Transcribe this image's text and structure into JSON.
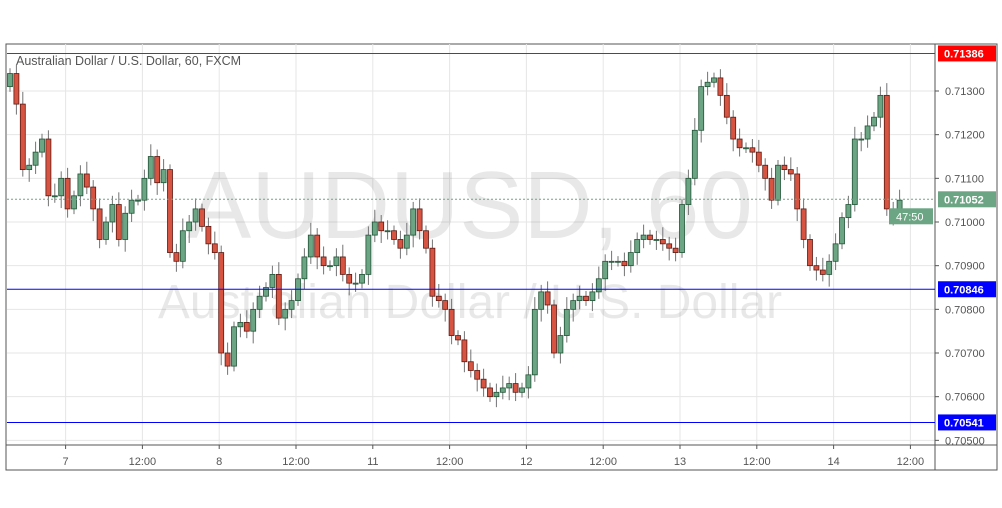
{
  "chart_data": {
    "type": "candlestick",
    "title": "Australian Dollar / U.S. Dollar, 60, FXCM",
    "watermark": {
      "symbol": "AUDUSD, 60",
      "name": "Australian Dollar / U.S. Dollar"
    },
    "ylim": [
      0.70495,
      0.7145
    ],
    "y_ticks": [
      "0.70500",
      "0.70600",
      "0.70700",
      "0.70800",
      "0.70900",
      "0.71000",
      "0.71100",
      "0.71200",
      "0.71300"
    ],
    "x_ticks": [
      {
        "label": "7",
        "candle": 9
      },
      {
        "label": "12:00",
        "candle": 21
      },
      {
        "label": "8",
        "candle": 33
      },
      {
        "label": "12:00",
        "candle": 45
      },
      {
        "label": "11",
        "candle": 57
      },
      {
        "label": "12:00",
        "candle": 69
      },
      {
        "label": "12",
        "candle": 81
      },
      {
        "label": "12:00",
        "candle": 93
      },
      {
        "label": "13",
        "candle": 105
      },
      {
        "label": "12:00",
        "candle": 117
      },
      {
        "label": "14",
        "candle": 129
      },
      {
        "label": "12:00",
        "candle": 141
      }
    ],
    "grid": true,
    "first_open": 0.7131,
    "closes": [
      0.7134,
      0.7127,
      0.7112,
      0.7113,
      0.7116,
      0.7119,
      0.7106,
      0.7106,
      0.711,
      0.7103,
      0.7106,
      0.7111,
      0.7108,
      0.7103,
      0.7096,
      0.71,
      0.7104,
      0.7096,
      0.7102,
      0.7105,
      0.7105,
      0.711,
      0.7115,
      0.7109,
      0.7112,
      0.7093,
      0.7091,
      0.7098,
      0.71,
      0.7103,
      0.7099,
      0.7095,
      0.7093,
      0.707,
      0.7067,
      0.7076,
      0.7077,
      0.7075,
      0.708,
      0.7083,
      0.7085,
      0.7088,
      0.7078,
      0.708,
      0.7082,
      0.7087,
      0.7092,
      0.7097,
      0.7092,
      0.709,
      0.709,
      0.7092,
      0.7088,
      0.7086,
      0.7086,
      0.7088,
      0.7097,
      0.71,
      0.7098,
      0.7098,
      0.7096,
      0.7094,
      0.7097,
      0.7103,
      0.7098,
      0.7094,
      0.7083,
      0.7082,
      0.708,
      0.7074,
      0.7073,
      0.7068,
      0.7066,
      0.7064,
      0.7062,
      0.706,
      0.7061,
      0.7062,
      0.7063,
      0.7061,
      0.7062,
      0.7065,
      0.708,
      0.7084,
      0.7081,
      0.707,
      0.7074,
      0.708,
      0.7082,
      0.7083,
      0.7082,
      0.7084,
      0.7087,
      0.7091,
      0.7091,
      0.7091,
      0.709,
      0.7093,
      0.7096,
      0.7097,
      0.7096,
      0.7096,
      0.7095,
      0.7094,
      0.7093,
      0.7104,
      0.711,
      0.7121,
      0.7131,
      0.7132,
      0.7133,
      0.7129,
      0.7124,
      0.7119,
      0.7117,
      0.7117,
      0.7116,
      0.7113,
      0.711,
      0.7105,
      0.7113,
      0.7112,
      0.7111,
      0.7103,
      0.7096,
      0.709,
      0.7089,
      0.7088,
      0.7091,
      0.7095,
      0.7101,
      0.7104,
      0.7119,
      0.7119,
      0.7122,
      0.7124,
      0.7129,
      0.7103,
      0.7102,
      0.7105
    ],
    "levels": [
      {
        "price": 0.71386,
        "label": "0.71386",
        "color": "#ff0000"
      },
      {
        "price": 0.70846,
        "label": "0.70846",
        "color": "#0000ff"
      },
      {
        "price": 0.70541,
        "label": "0.70541",
        "color": "#0000ff"
      }
    ],
    "current": {
      "price": 0.71052,
      "label": "0.71052",
      "countdown": "47:50",
      "color": "#6ba583"
    },
    "colors": {
      "up": "#6ba583",
      "down": "#d75442",
      "up_border": "#225437",
      "down_border": "#5b1a13",
      "wick": "#737375",
      "grid": "#e6e6e6"
    }
  }
}
